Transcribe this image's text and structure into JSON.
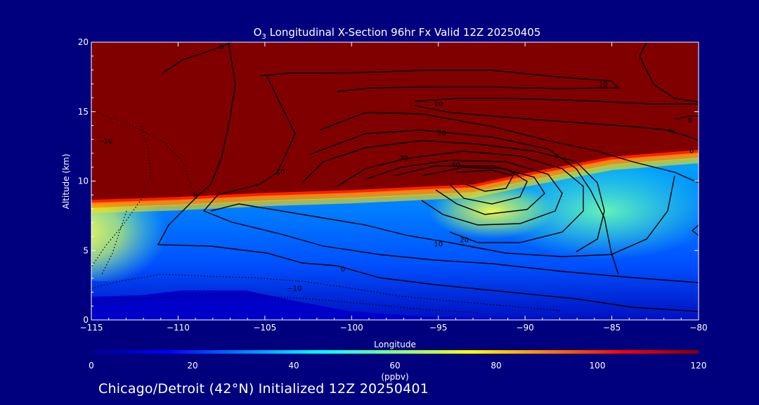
{
  "chart_data": {
    "type": "heatmap",
    "title": "O3 Longitudinal X-Section 96hr  Fx Valid 12Z 20250405",
    "xlabel": "Longitude",
    "ylabel": "Altitude (km)",
    "xlim": [
      -115,
      -80
    ],
    "ylim": [
      0,
      20
    ],
    "x_ticks": [
      -115,
      -110,
      -105,
      -100,
      -95,
      -90,
      -85,
      -80
    ],
    "x_tick_labels": [
      "−115",
      "−110",
      "−105",
      "−100",
      "−95",
      "−90",
      "−85",
      "−80"
    ],
    "y_ticks": [
      0,
      5,
      10,
      15,
      20
    ],
    "y_tick_labels": [
      "0",
      "5",
      "10",
      "15",
      "20"
    ],
    "colorbar": {
      "label": "(ppbv)",
      "range": [
        0,
        120
      ],
      "ticks": [
        0,
        20,
        40,
        60,
        80,
        100,
        120
      ],
      "tick_labels": [
        "0",
        "20",
        "40",
        "60",
        "80",
        "100",
        "120"
      ],
      "colors": [
        "#00008f",
        "#0000ff",
        "#0080ff",
        "#00ffff",
        "#80ff80",
        "#ffff00",
        "#ff8000",
        "#ff0000",
        "#800000"
      ]
    },
    "background_color": "#00007f",
    "tropopause_km": [
      [
        -115,
        8.6
      ],
      [
        -110,
        8.8
      ],
      [
        -105,
        9.1
      ],
      [
        -100,
        9.3
      ],
      [
        -95,
        9.6
      ],
      [
        -93,
        9.7
      ],
      [
        -90,
        10.5
      ],
      [
        -85,
        11.7
      ],
      [
        -80,
        12.2
      ]
    ],
    "contour_labels": [
      {
        "text": "0",
        "lon": -107.5,
        "alt": 19.5
      },
      {
        "text": "−10",
        "lon": -114.2,
        "alt": 12.7
      },
      {
        "text": "0",
        "lon": -109.0,
        "alt": 8.8
      },
      {
        "text": "10",
        "lon": -104.1,
        "alt": 10.5
      },
      {
        "text": "10",
        "lon": -95.0,
        "alt": 15.4
      },
      {
        "text": "10",
        "lon": -85.5,
        "alt": 16.8
      },
      {
        "text": "20",
        "lon": -94.8,
        "alt": 13.3
      },
      {
        "text": "30",
        "lon": -97.0,
        "alt": 11.5
      },
      {
        "text": "40",
        "lon": -94.0,
        "alt": 11.0
      },
      {
        "text": "20",
        "lon": -93.5,
        "alt": 5.6
      },
      {
        "text": "10",
        "lon": -95.0,
        "alt": 5.3
      },
      {
        "text": "0",
        "lon": -100.5,
        "alt": 3.5
      },
      {
        "text": "−10",
        "lon": -103.3,
        "alt": 2.1
      },
      {
        "text": "0",
        "lon": -80.5,
        "alt": 14.2
      },
      {
        "text": "0",
        "lon": -80.4,
        "alt": 12.0
      }
    ]
  },
  "footer_text": "Chicago/Detroit (42°N) Initialized 12Z 20250401"
}
